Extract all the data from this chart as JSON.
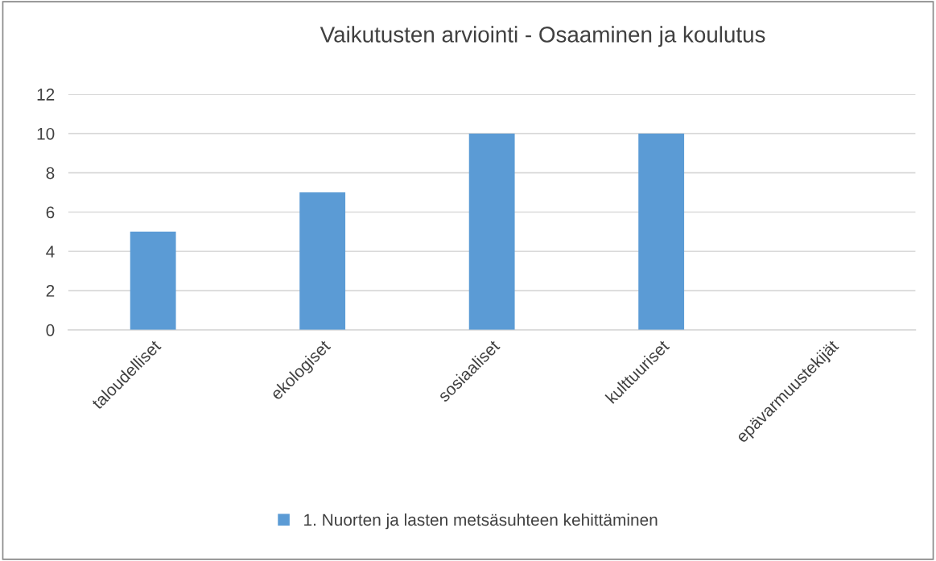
{
  "chart_data": {
    "type": "bar",
    "title": "Vaikutusten arviointi - Osaaminen ja koulutus",
    "categories": [
      "taloudelliset",
      "ekologiset",
      "sosiaaliset",
      "kulttuuriset",
      "epävarmuustekijät"
    ],
    "series": [
      {
        "name": "1. Nuorten ja lasten metsäsuhteen kehittäminen",
        "color": "#5b9bd5",
        "values": [
          5,
          7,
          10,
          10,
          0
        ]
      }
    ],
    "ylim": [
      0,
      12
    ],
    "yticks": [
      0,
      2,
      4,
      6,
      8,
      10,
      12
    ],
    "grid": "y",
    "legend": "bottom"
  }
}
